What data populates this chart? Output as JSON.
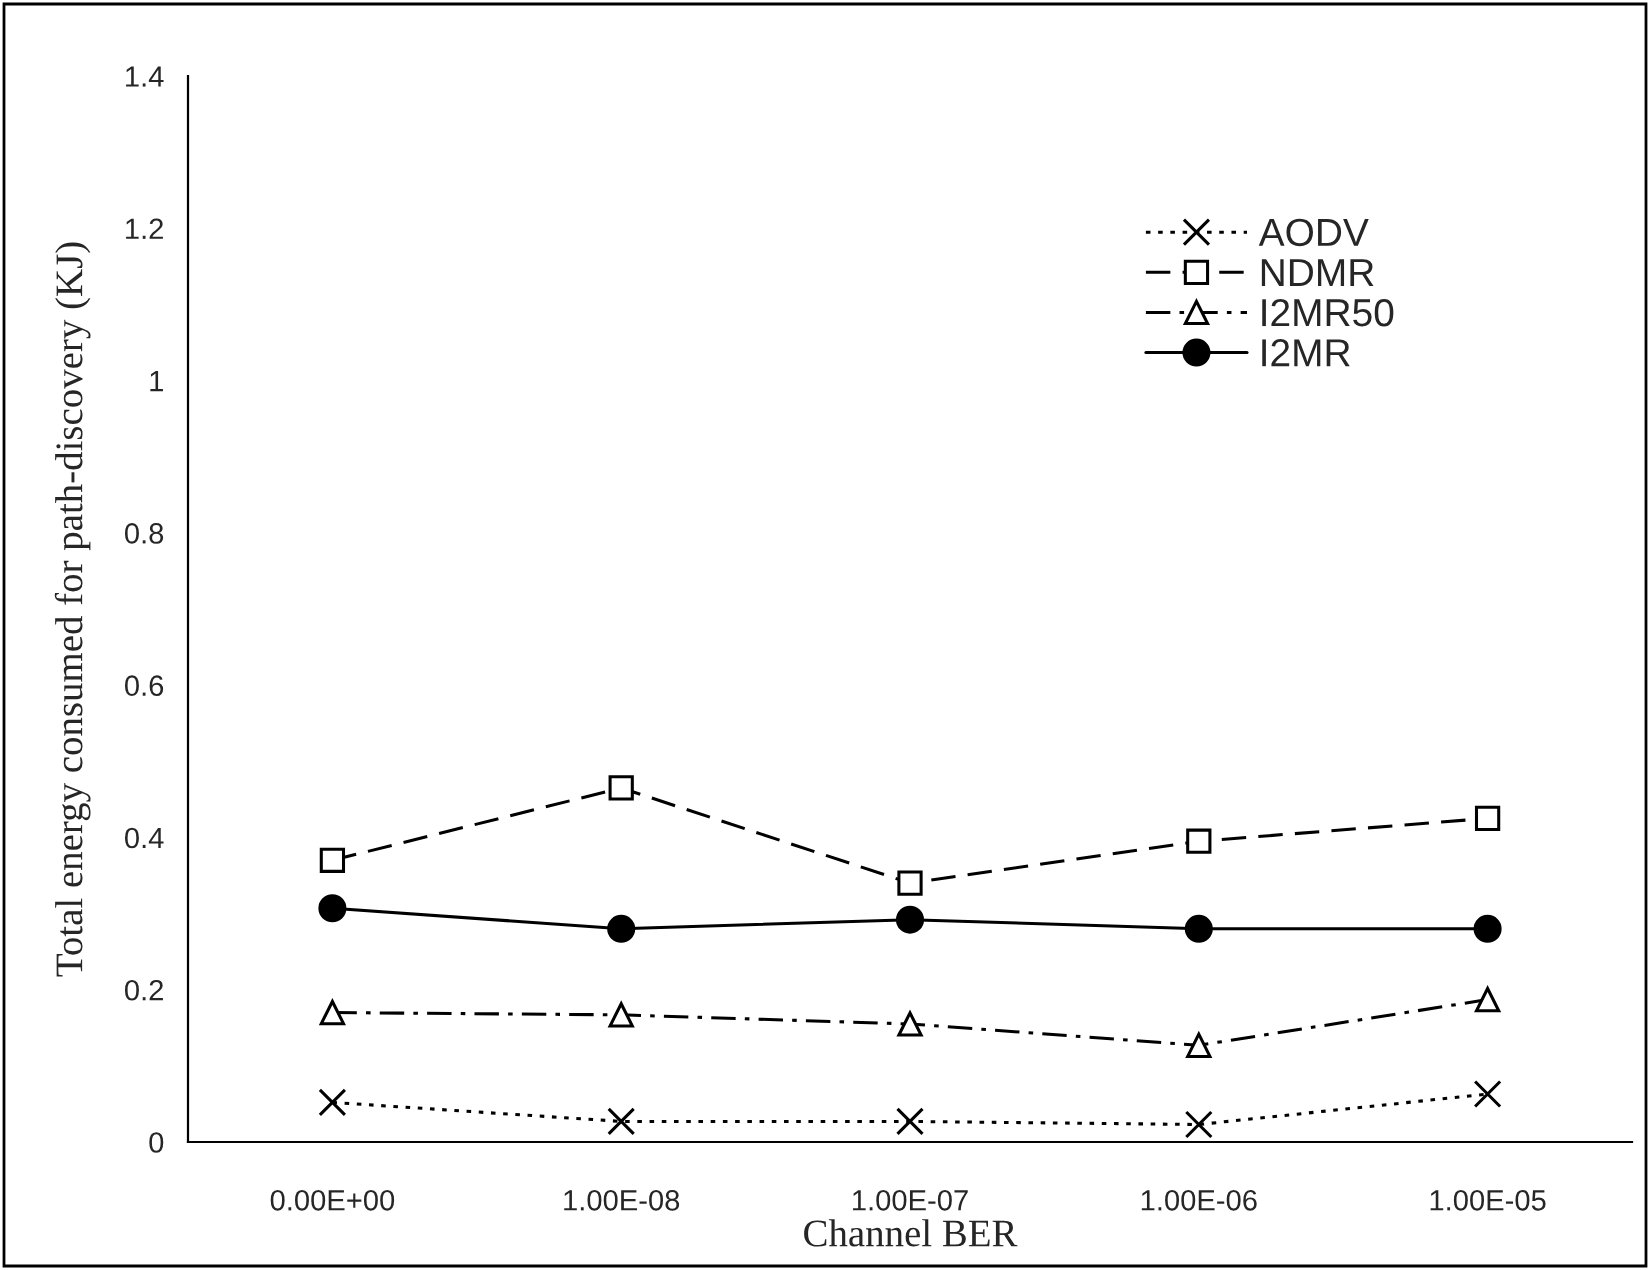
{
  "chart_data": {
    "type": "line",
    "xlabel": "Channel BER",
    "ylabel": "Total energy consumed for path-discovery (KJ)",
    "categories": [
      "0.00E+00",
      "1.00E-08",
      "1.00E-07",
      "1.00E-06",
      "1.00E-05"
    ],
    "ylim": [
      0,
      1.4
    ],
    "yticks": [
      0,
      0.2,
      0.4,
      0.6,
      0.8,
      1,
      1.2,
      1.4
    ],
    "grid": false,
    "legend": "top right",
    "series": [
      {
        "name": "AODV",
        "color": "#000000",
        "marker": "cross",
        "line_style": "dotted",
        "values": [
          0.052,
          0.027,
          0.027,
          0.023,
          0.063
        ]
      },
      {
        "name": "NDMR",
        "color": "#000000",
        "marker": "square",
        "line_style": "dashed",
        "values": [
          0.37,
          0.465,
          0.34,
          0.395,
          0.425
        ]
      },
      {
        "name": "I2MR50",
        "color": "#000000",
        "marker": "triangle",
        "line_style": "dashdot",
        "values": [
          0.17,
          0.167,
          0.155,
          0.127,
          0.187
        ]
      },
      {
        "name": "I2MR",
        "color": "#000000",
        "marker": "circle",
        "line_style": "solid",
        "values": [
          0.307,
          0.28,
          0.292,
          0.28,
          0.28
        ]
      }
    ]
  }
}
